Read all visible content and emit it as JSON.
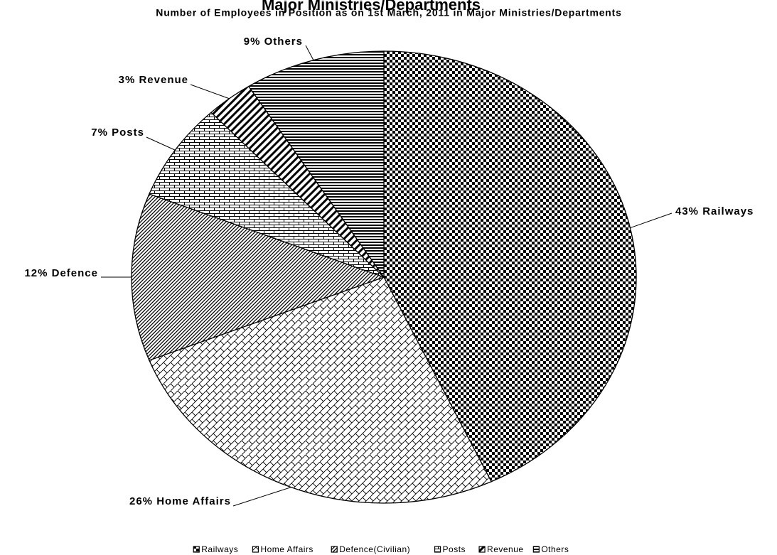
{
  "chart_data": {
    "type": "pie",
    "title": "Major Ministries/Departments",
    "subtitle": "Number of Employees in Position as on 1st March, 2011 in Major Ministries/Departments",
    "categories": [
      "Railways",
      "Home Affairs",
      "Defence(Civilian)",
      "Posts",
      "Revenue",
      "Others"
    ],
    "values": [
      43,
      26,
      12,
      7,
      3,
      9
    ],
    "value_labels": [
      "43%  Railways",
      "26%  Home Affairs",
      "12%  Defence",
      "7%  Posts",
      "3%  Revenue",
      "9%  Others"
    ],
    "legend": "bottom"
  }
}
